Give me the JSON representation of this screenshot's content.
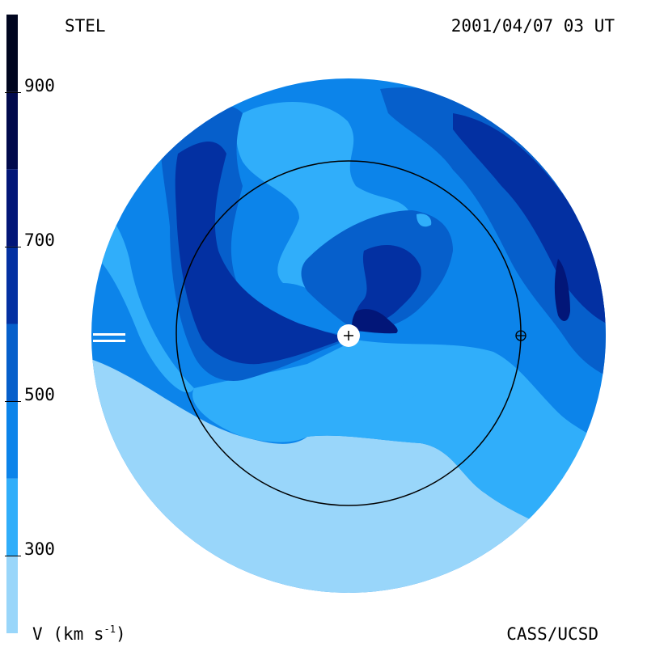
{
  "header": {
    "observatory": "STEL",
    "timestamp": "2001/04/07 03 UT"
  },
  "footer": {
    "credit": "CASS/UCSD"
  },
  "legend": {
    "quantity_symbol": "V",
    "unit_text": "(km s",
    "unit_exponent": "-1",
    "unit_close": ")",
    "ticks": [
      {
        "label": "900",
        "value": 900
      },
      {
        "label": "700",
        "value": 700
      },
      {
        "label": "500",
        "value": 500
      },
      {
        "label": "300",
        "value": 300
      }
    ],
    "bands": [
      {
        "min": 200,
        "max": 300,
        "color": "#99d6fa"
      },
      {
        "min": 300,
        "max": 400,
        "color": "#30aefa"
      },
      {
        "min": 400,
        "max": 500,
        "color": "#0c84ea"
      },
      {
        "min": 500,
        "max": 600,
        "color": "#065fcb"
      },
      {
        "min": 600,
        "max": 700,
        "color": "#0330a2"
      },
      {
        "min": 700,
        "max": 800,
        "color": "#021678"
      },
      {
        "min": 800,
        "max": 900,
        "color": "#010a4c"
      },
      {
        "min": 900,
        "max": 1000,
        "color": "#00051f"
      }
    ],
    "range": [
      200,
      1000
    ]
  },
  "map": {
    "sun_icon": "sun-plus-icon",
    "earth_icon": "earth-cross-icon",
    "orbit": "earth-orbit-circle"
  }
}
